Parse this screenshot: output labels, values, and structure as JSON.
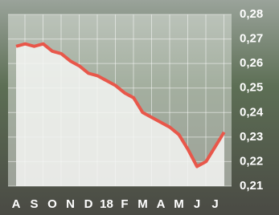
{
  "chart_data": {
    "type": "line",
    "categories": [
      "A",
      null,
      "S",
      null,
      "O",
      null,
      "N",
      null,
      "D",
      null,
      "18",
      null,
      "F",
      null,
      "M",
      null,
      "A",
      null,
      "M",
      null,
      "J",
      null,
      "J",
      null
    ],
    "values": [
      0.267,
      0.268,
      0.267,
      0.268,
      0.265,
      0.264,
      0.261,
      0.259,
      0.256,
      0.255,
      0.253,
      0.251,
      0.248,
      0.246,
      0.24,
      0.238,
      0.236,
      0.234,
      0.231,
      0.225,
      0.218,
      0.22,
      0.226,
      0.232
    ],
    "color": "#e8574a",
    "ylim": [
      0.21,
      0.28
    ],
    "yticks": [
      {
        "value": 0.21,
        "label": "0,21"
      },
      {
        "value": 0.22,
        "label": "0,22"
      },
      {
        "value": 0.23,
        "label": "0,23"
      },
      {
        "value": 0.24,
        "label": "0,24"
      },
      {
        "value": 0.25,
        "label": "0,25"
      },
      {
        "value": 0.26,
        "label": "0,26"
      },
      {
        "value": 0.27,
        "label": "0,27"
      },
      {
        "value": 0.28,
        "label": "0,28"
      }
    ],
    "grid": true
  }
}
